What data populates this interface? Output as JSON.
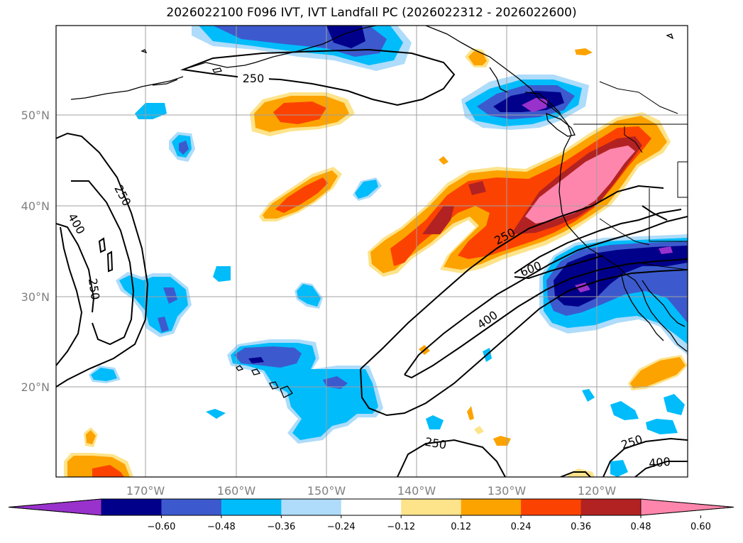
{
  "title": "2026022100 F096 IVT, IVT Landfall PC (2026022312 - 2026022600)",
  "colors": {
    "pos_light": "#fde38a",
    "pos_orange": "#fca300",
    "pos_redorange": "#fc4200",
    "pos_darkred": "#b22222",
    "pos_pink": "#fe86ac",
    "neg_light": "#aedcfa",
    "neg_cyan": "#00bcfb",
    "neg_blue": "#3c5acd",
    "neg_navy": "#00008b",
    "neg_purple": "#9932cc",
    "contour": "#000000",
    "grid": "#a0a0a0",
    "land_outline": "#000000"
  },
  "axes": {
    "lat_labels": [
      "50°N",
      "40°N",
      "30°N",
      "20°N"
    ],
    "lon_labels": [
      "170°W",
      "160°W",
      "150°W",
      "140°W",
      "130°W",
      "120°W"
    ]
  },
  "contour_labels": [
    "250",
    "250",
    "250",
    "400",
    "250",
    "600",
    "400",
    "250",
    "250",
    "400"
  ],
  "colorbar": {
    "ticks": [
      "−0.60",
      "−0.48",
      "−0.36",
      "−0.24",
      "−0.12",
      "0.12",
      "0.24",
      "0.36",
      "0.48",
      "0.60"
    ],
    "segment_colors": [
      "#9932cc",
      "#00008b",
      "#3c5acd",
      "#00bcfb",
      "#aedcfa",
      "#ffffff",
      "#fde38a",
      "#fca300",
      "#fc4200",
      "#b22222",
      "#fe86ac"
    ]
  }
}
